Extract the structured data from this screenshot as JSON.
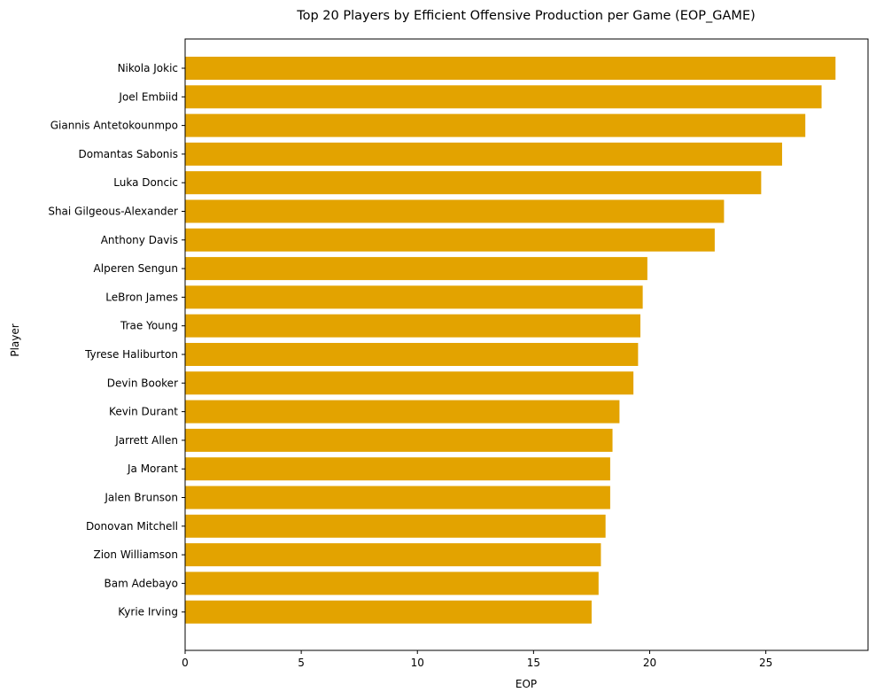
{
  "chart_data": {
    "type": "bar",
    "orientation": "horizontal",
    "title": "Top 20 Players by Efficient Offensive Production per Game (EOP_GAME)",
    "xlabel": "EOP",
    "ylabel": "Player",
    "xlim": [
      0,
      29.4
    ],
    "xticks": [
      0,
      5,
      10,
      15,
      20,
      25
    ],
    "grid": false,
    "bar_color": "#e3a300",
    "categories": [
      "Nikola Jokic",
      "Joel Embiid",
      "Giannis Antetokounmpo",
      "Domantas Sabonis",
      "Luka Doncic",
      "Shai Gilgeous-Alexander",
      "Anthony Davis",
      "Alperen Sengun",
      "LeBron James",
      "Trae Young",
      "Tyrese Haliburton",
      "Devin Booker",
      "Kevin Durant",
      "Jarrett Allen",
      "Ja Morant",
      "Jalen Brunson",
      "Donovan Mitchell",
      "Zion Williamson",
      "Bam Adebayo",
      "Kyrie Irving"
    ],
    "values": [
      28.0,
      27.4,
      26.7,
      25.7,
      24.8,
      23.2,
      22.8,
      19.9,
      19.7,
      19.6,
      19.5,
      19.3,
      18.7,
      18.4,
      18.3,
      18.3,
      18.1,
      17.9,
      17.8,
      17.5
    ]
  }
}
